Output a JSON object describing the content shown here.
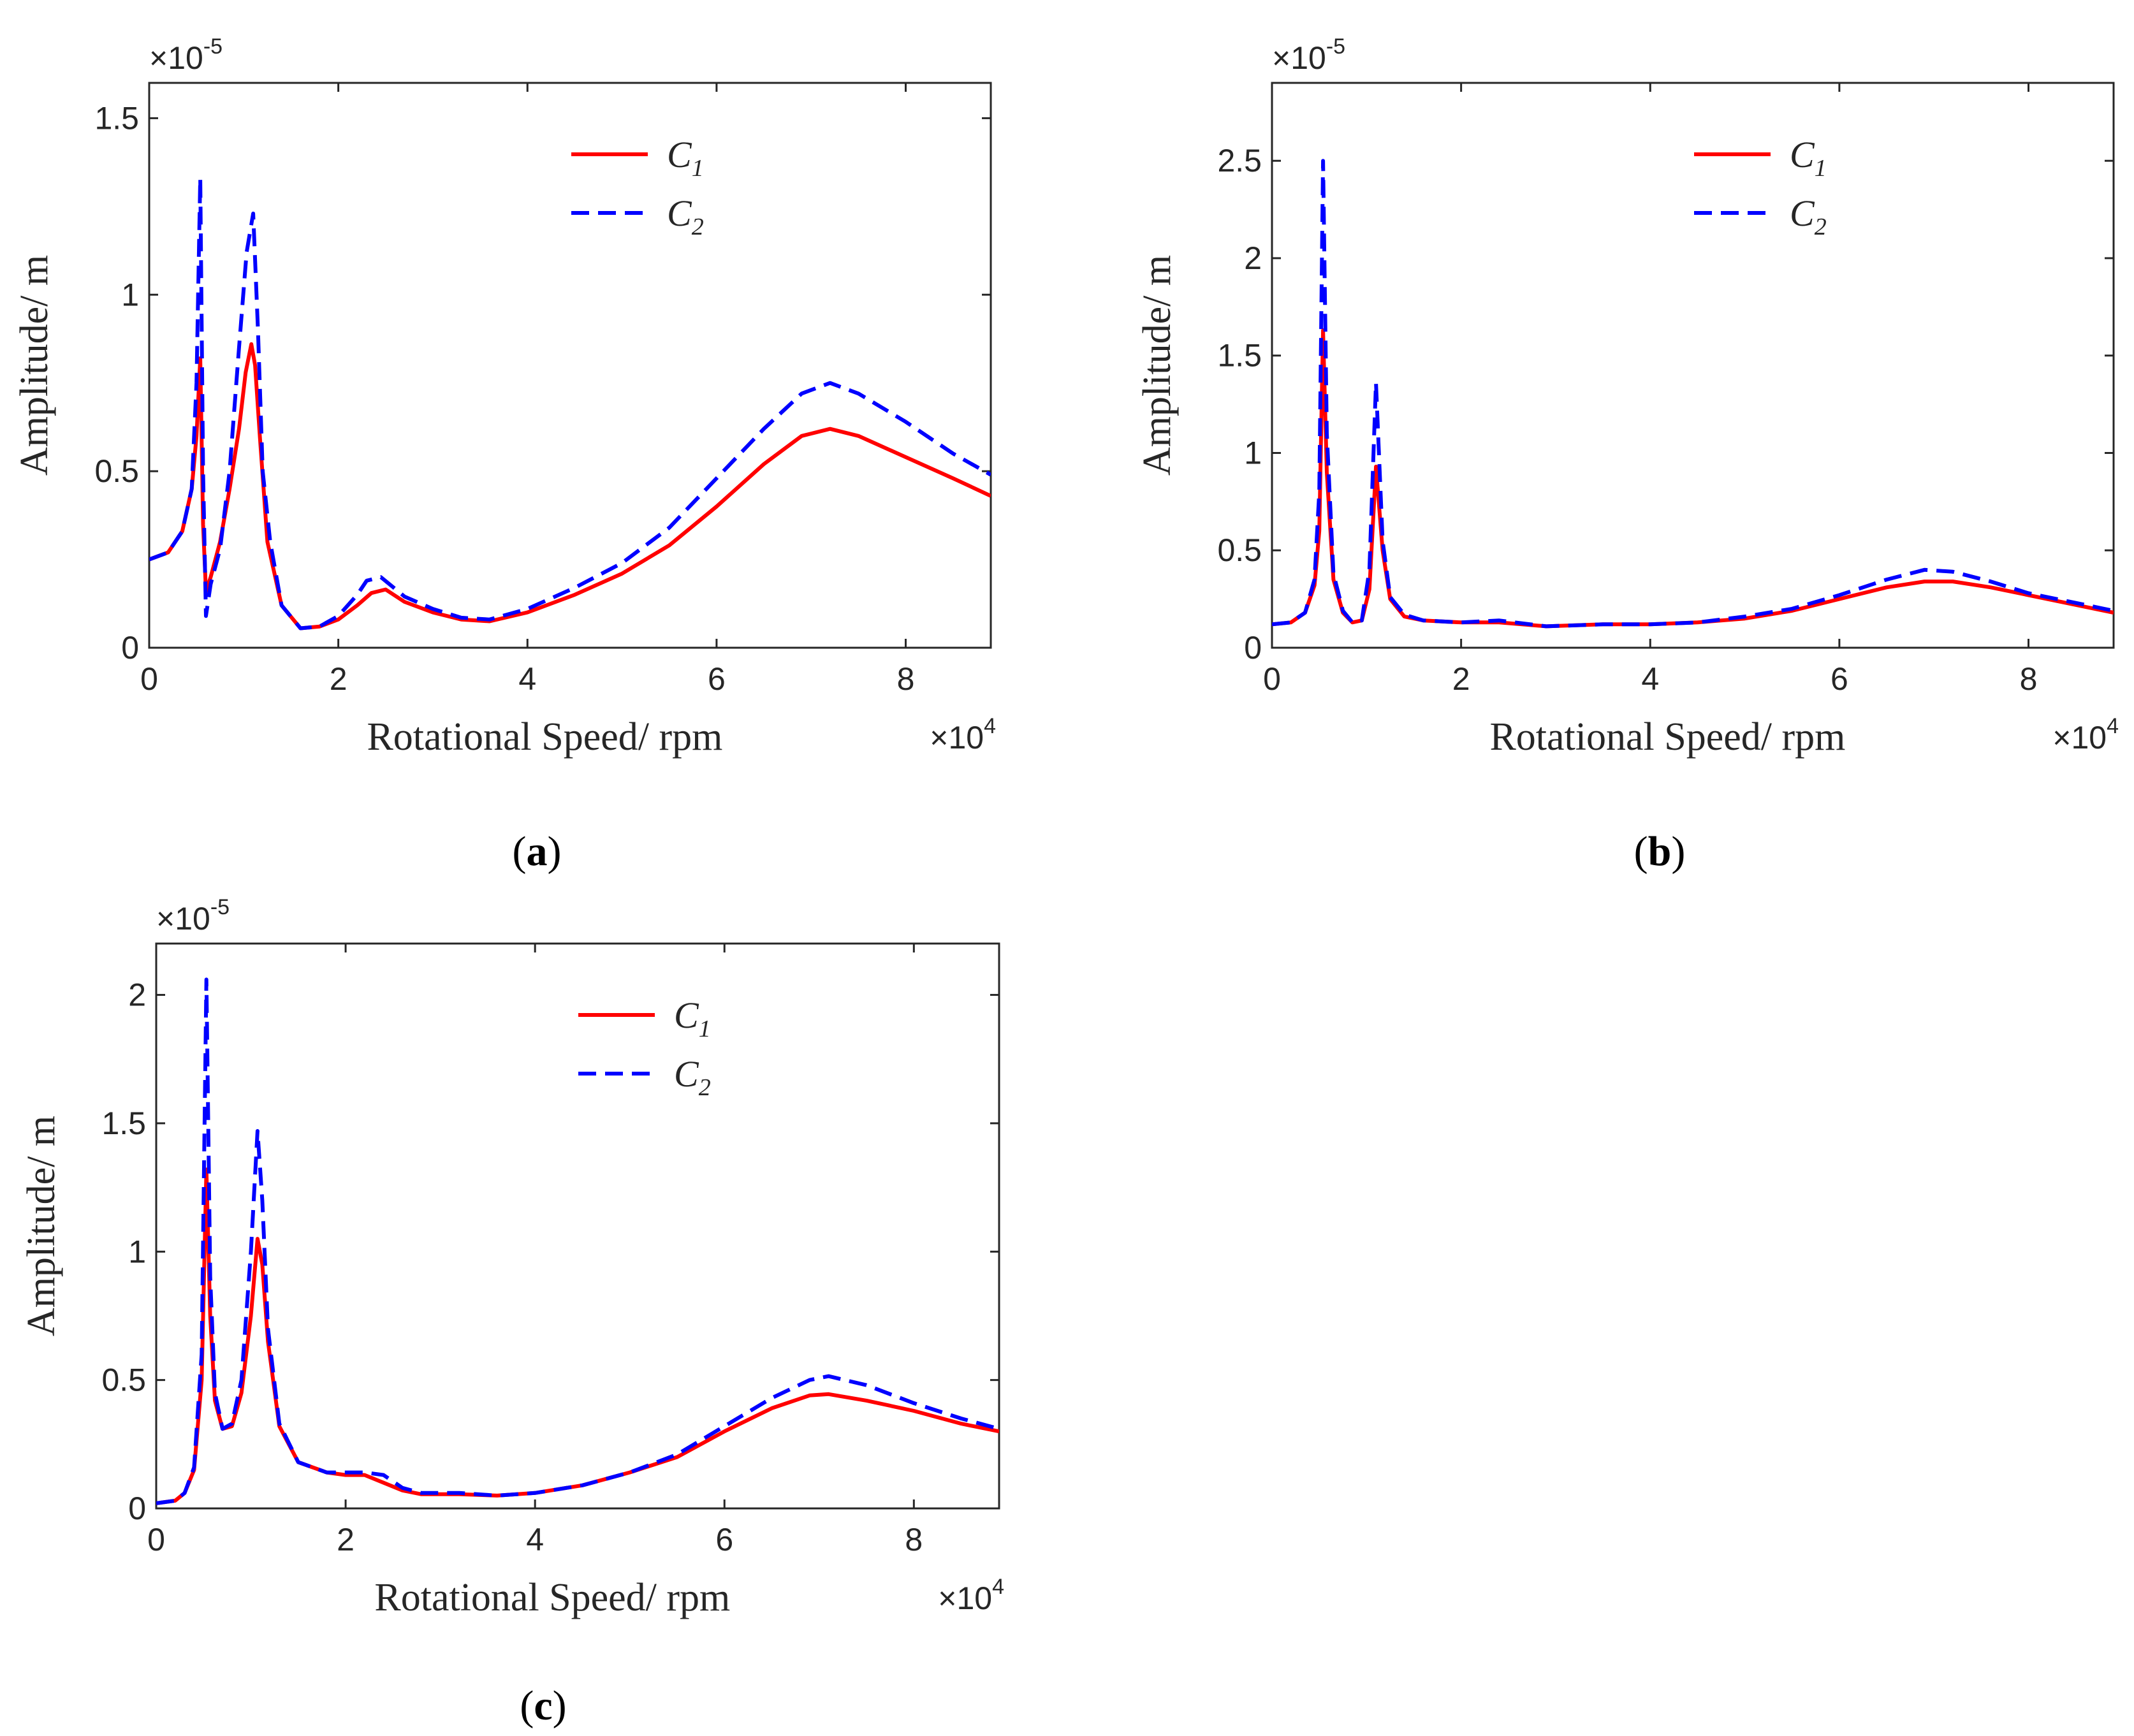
{
  "colors": {
    "c1": "#ff0000",
    "c2": "#0000ff",
    "axis": "#262626"
  },
  "chart_data": [
    {
      "type": "line",
      "panel_label": "a",
      "xlabel": "Rotational Speed/ rpm",
      "ylabel": "Amplitude/ m",
      "x_exponent": "4",
      "y_exponent": "-5",
      "xlim": [
        0,
        8.9
      ],
      "ylim": [
        0,
        1.6
      ],
      "xticks": [
        0,
        2,
        4,
        6,
        8
      ],
      "xtick_labels": [
        "0",
        "2",
        "4",
        "6",
        "8"
      ],
      "yticks": [
        0,
        0.5,
        1,
        1.5
      ],
      "ytick_labels": [
        "0",
        "0.5",
        "1",
        "1.5"
      ],
      "legend_position": "top-right",
      "series": [
        {
          "name": "C",
          "name_sub": "1",
          "color": "#ff0000",
          "style": "solid",
          "x": [
            0,
            0.2,
            0.35,
            0.45,
            0.5,
            0.54,
            0.57,
            0.6,
            0.65,
            0.75,
            0.85,
            0.95,
            1.02,
            1.08,
            1.12,
            1.17,
            1.25,
            1.4,
            1.6,
            1.8,
            2.0,
            2.2,
            2.35,
            2.5,
            2.7,
            3.0,
            3.3,
            3.6,
            4.0,
            4.5,
            5.0,
            5.5,
            6.0,
            6.5,
            6.9,
            7.2,
            7.5,
            8.0,
            8.5,
            8.9
          ],
          "y": [
            0.25,
            0.27,
            0.33,
            0.45,
            0.6,
            0.82,
            0.35,
            0.16,
            0.2,
            0.3,
            0.45,
            0.62,
            0.78,
            0.86,
            0.8,
            0.6,
            0.3,
            0.12,
            0.055,
            0.06,
            0.08,
            0.12,
            0.155,
            0.165,
            0.13,
            0.1,
            0.08,
            0.075,
            0.1,
            0.15,
            0.21,
            0.29,
            0.4,
            0.52,
            0.6,
            0.62,
            0.6,
            0.54,
            0.48,
            0.43
          ]
        },
        {
          "name": "C",
          "name_sub": "2",
          "color": "#0000ff",
          "style": "dashed",
          "x": [
            0,
            0.2,
            0.35,
            0.45,
            0.5,
            0.54,
            0.57,
            0.6,
            0.65,
            0.75,
            0.85,
            0.95,
            1.03,
            1.1,
            1.15,
            1.2,
            1.28,
            1.4,
            1.6,
            1.8,
            2.0,
            2.2,
            2.3,
            2.45,
            2.7,
            3.0,
            3.3,
            3.6,
            4.0,
            4.5,
            5.0,
            5.5,
            6.0,
            6.5,
            6.9,
            7.2,
            7.5,
            8.0,
            8.5,
            8.9
          ],
          "y": [
            0.25,
            0.27,
            0.33,
            0.45,
            0.75,
            1.33,
            0.5,
            0.09,
            0.18,
            0.28,
            0.5,
            0.85,
            1.12,
            1.23,
            0.9,
            0.5,
            0.3,
            0.12,
            0.055,
            0.06,
            0.09,
            0.15,
            0.19,
            0.2,
            0.145,
            0.11,
            0.085,
            0.08,
            0.11,
            0.17,
            0.24,
            0.34,
            0.48,
            0.62,
            0.72,
            0.75,
            0.72,
            0.64,
            0.55,
            0.49
          ]
        }
      ]
    },
    {
      "type": "line",
      "panel_label": "b",
      "xlabel": "Rotational Speed/ rpm",
      "ylabel": "Amplitude/ m",
      "x_exponent": "4",
      "y_exponent": "-5",
      "xlim": [
        0,
        8.9
      ],
      "ylim": [
        0,
        2.9
      ],
      "xticks": [
        0,
        2,
        4,
        6,
        8
      ],
      "xtick_labels": [
        "0",
        "2",
        "4",
        "6",
        "8"
      ],
      "yticks": [
        0,
        0.5,
        1,
        1.5,
        2,
        2.5
      ],
      "ytick_labels": [
        "0",
        "0.5",
        "1",
        "1.5",
        "2",
        "2.5"
      ],
      "legend_position": "top-right",
      "series": [
        {
          "name": "C",
          "name_sub": "1",
          "color": "#ff0000",
          "style": "solid",
          "x": [
            0,
            0.2,
            0.35,
            0.45,
            0.5,
            0.54,
            0.58,
            0.65,
            0.75,
            0.85,
            0.95,
            1.03,
            1.1,
            1.17,
            1.25,
            1.4,
            1.6,
            2.0,
            2.4,
            2.9,
            3.5,
            4.0,
            4.5,
            5.0,
            5.5,
            6.0,
            6.5,
            6.9,
            7.2,
            7.6,
            8.0,
            8.5,
            8.9
          ],
          "y": [
            0.12,
            0.13,
            0.18,
            0.32,
            0.6,
            1.63,
            0.9,
            0.35,
            0.18,
            0.13,
            0.14,
            0.3,
            0.93,
            0.5,
            0.25,
            0.16,
            0.14,
            0.13,
            0.13,
            0.11,
            0.12,
            0.12,
            0.13,
            0.15,
            0.19,
            0.25,
            0.31,
            0.34,
            0.34,
            0.31,
            0.27,
            0.22,
            0.18
          ]
        },
        {
          "name": "C",
          "name_sub": "2",
          "color": "#0000ff",
          "style": "dashed",
          "x": [
            0,
            0.2,
            0.35,
            0.45,
            0.5,
            0.54,
            0.58,
            0.65,
            0.75,
            0.85,
            0.95,
            1.03,
            1.1,
            1.17,
            1.25,
            1.4,
            1.6,
            2.0,
            2.4,
            2.9,
            3.5,
            4.0,
            4.5,
            5.0,
            5.5,
            6.0,
            6.5,
            6.9,
            7.2,
            7.6,
            8.0,
            8.5,
            8.9
          ],
          "y": [
            0.12,
            0.13,
            0.18,
            0.35,
            0.8,
            2.5,
            1.1,
            0.38,
            0.19,
            0.13,
            0.14,
            0.4,
            1.36,
            0.55,
            0.26,
            0.17,
            0.14,
            0.13,
            0.14,
            0.11,
            0.12,
            0.12,
            0.13,
            0.16,
            0.2,
            0.27,
            0.35,
            0.4,
            0.39,
            0.34,
            0.28,
            0.23,
            0.19
          ]
        }
      ]
    },
    {
      "type": "line",
      "panel_label": "c",
      "xlabel": "Rotational Speed/ rpm",
      "ylabel": "Amplitude/ m",
      "x_exponent": "4",
      "y_exponent": "-5",
      "xlim": [
        0,
        8.9
      ],
      "ylim": [
        0,
        2.2
      ],
      "xticks": [
        0,
        2,
        4,
        6,
        8
      ],
      "xtick_labels": [
        "0",
        "2",
        "4",
        "6",
        "8"
      ],
      "yticks": [
        0,
        0.5,
        1,
        1.5,
        2
      ],
      "ytick_labels": [
        "0",
        "0.5",
        "1",
        "1.5",
        "2"
      ],
      "legend_position": "top-right",
      "series": [
        {
          "name": "C",
          "name_sub": "1",
          "color": "#ff0000",
          "style": "solid",
          "x": [
            0,
            0.2,
            0.3,
            0.4,
            0.48,
            0.53,
            0.57,
            0.62,
            0.7,
            0.8,
            0.9,
            1.0,
            1.07,
            1.12,
            1.18,
            1.3,
            1.5,
            1.8,
            2.0,
            2.2,
            2.4,
            2.6,
            2.8,
            3.2,
            3.6,
            4.0,
            4.5,
            5.0,
            5.5,
            6.0,
            6.5,
            6.9,
            7.1,
            7.5,
            8.0,
            8.5,
            8.9
          ],
          "y": [
            0.02,
            0.03,
            0.06,
            0.15,
            0.5,
            1.32,
            0.75,
            0.42,
            0.31,
            0.32,
            0.45,
            0.75,
            1.05,
            0.95,
            0.65,
            0.32,
            0.18,
            0.14,
            0.13,
            0.13,
            0.1,
            0.07,
            0.055,
            0.055,
            0.05,
            0.06,
            0.09,
            0.14,
            0.2,
            0.3,
            0.39,
            0.44,
            0.445,
            0.42,
            0.38,
            0.33,
            0.3
          ]
        },
        {
          "name": "C",
          "name_sub": "2",
          "color": "#0000ff",
          "style": "dashed",
          "x": [
            0,
            0.2,
            0.3,
            0.4,
            0.48,
            0.53,
            0.57,
            0.62,
            0.7,
            0.8,
            0.9,
            1.0,
            1.07,
            1.12,
            1.18,
            1.3,
            1.5,
            1.8,
            2.0,
            2.2,
            2.4,
            2.6,
            2.8,
            3.2,
            3.6,
            4.0,
            4.5,
            5.0,
            5.5,
            6.0,
            6.5,
            6.9,
            7.1,
            7.5,
            8.0,
            8.5,
            8.9
          ],
          "y": [
            0.02,
            0.03,
            0.06,
            0.16,
            0.6,
            2.06,
            0.9,
            0.45,
            0.31,
            0.33,
            0.5,
            1.0,
            1.47,
            1.2,
            0.7,
            0.33,
            0.18,
            0.14,
            0.14,
            0.14,
            0.13,
            0.08,
            0.06,
            0.06,
            0.05,
            0.06,
            0.09,
            0.14,
            0.21,
            0.32,
            0.43,
            0.5,
            0.515,
            0.48,
            0.41,
            0.35,
            0.31
          ]
        }
      ]
    }
  ]
}
